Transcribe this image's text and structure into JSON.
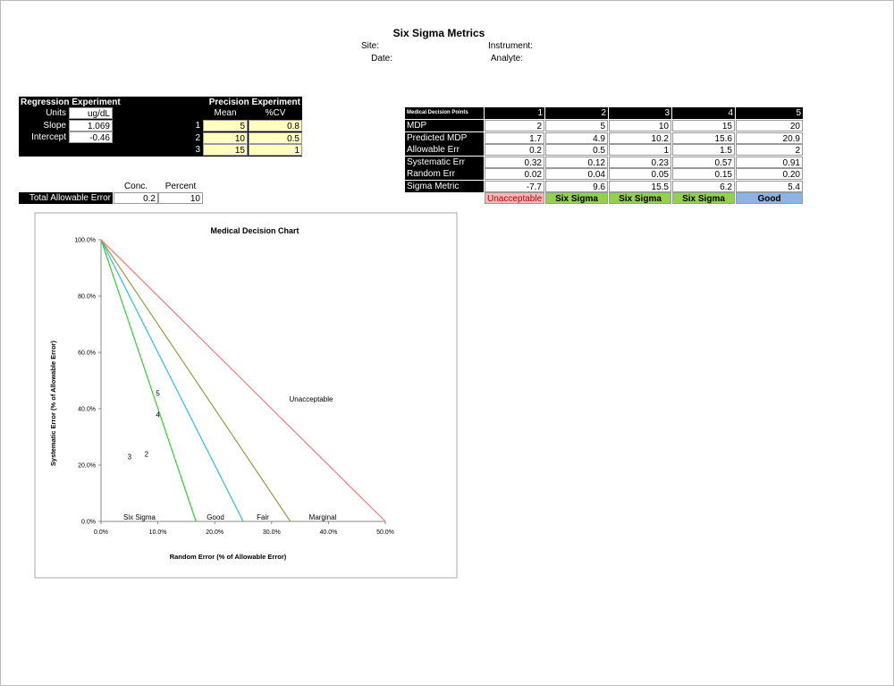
{
  "header": {
    "title": "Six Sigma Metrics",
    "site": "Site:",
    "instrument": "Instrument:",
    "date": "Date:",
    "analyte": "Analyte:"
  },
  "regression": {
    "title": "Regression Experiment",
    "rows": [
      [
        "Units",
        "ug/dL"
      ],
      [
        "Slope",
        1.069
      ],
      [
        "Intercept",
        -0.46
      ]
    ]
  },
  "precision": {
    "title": "Precision Experiment",
    "columns": [
      "Mean",
      "%CV"
    ],
    "rows": [
      [
        1,
        5,
        0.8
      ],
      [
        2,
        10,
        0.5
      ],
      [
        3,
        15,
        1
      ]
    ]
  },
  "allowable_error": {
    "label": "Total Allowable Error",
    "columns": [
      "Conc.",
      "Percent"
    ],
    "values": [
      0.2,
      10
    ]
  },
  "decision_points": {
    "title": "Medical Decision Points",
    "columns": [
      1,
      2,
      3,
      4,
      5
    ],
    "rows": [
      {
        "label": "MDP",
        "values": [
          2,
          5,
          10,
          15,
          20
        ]
      },
      {
        "label": "Predicted MDP",
        "values": [
          1.7,
          4.9,
          10.2,
          15.6,
          20.9
        ]
      },
      {
        "label": "Allowable Err",
        "values": [
          0.2,
          0.5,
          1,
          1.5,
          2
        ]
      },
      {
        "label": "Systematic Err",
        "values": [
          0.32,
          0.12,
          0.23,
          0.57,
          0.91
        ]
      },
      {
        "label": "Random Err",
        "values": [
          0.02,
          0.04,
          0.05,
          0.15,
          "0.20"
        ]
      },
      {
        "label": "Sigma Metric",
        "values": [
          -7.7,
          9.6,
          15.5,
          6.2,
          5.4
        ]
      }
    ],
    "ratings": [
      {
        "text": "Unacceptable",
        "fill": "#f4b8b8",
        "color": "#c00000"
      },
      {
        "text": "Six Sigma",
        "fill": "#92d050",
        "color": "#000000"
      },
      {
        "text": "Six Sigma",
        "fill": "#92d050",
        "color": "#000000"
      },
      {
        "text": "Six Sigma",
        "fill": "#92d050",
        "color": "#000000"
      },
      {
        "text": "Good",
        "fill": "#8db3e2",
        "color": "#000000"
      }
    ]
  },
  "chart_data": {
    "type": "line",
    "title": "Medical Decision Chart",
    "x_label": "Random Error (% of Allowable Error)",
    "y_label": "Systematic Error (% of Allowable Error)",
    "xlim": [
      0,
      50
    ],
    "xticks": [
      {
        "value": 0,
        "label": "0.0%"
      },
      {
        "value": 10,
        "label": "10.0%"
      },
      {
        "value": 20,
        "label": "20.0%"
      },
      {
        "value": 30,
        "label": "30.0%"
      },
      {
        "value": 40,
        "label": "40.0%"
      },
      {
        "value": 50,
        "label": "50.0%"
      }
    ],
    "ylim": [
      0,
      100
    ],
    "yticks": [
      {
        "value": 0,
        "label": "0.0%"
      },
      {
        "value": 20,
        "label": "20.0%"
      },
      {
        "value": 40,
        "label": "40.0%"
      },
      {
        "value": 60,
        "label": "60.0%"
      },
      {
        "value": 80,
        "label": "80.0%"
      },
      {
        "value": 100,
        "label": "100.0%"
      }
    ],
    "lines": [
      {
        "color": "#33cc33",
        "x": [
          0,
          16.7
        ],
        "y": [
          100,
          0
        ]
      },
      {
        "color": "#33bbdd",
        "x": [
          0,
          25
        ],
        "y": [
          100,
          0
        ]
      },
      {
        "color": "#999944",
        "x": [
          0,
          33.3
        ],
        "y": [
          100,
          0
        ]
      },
      {
        "color": "#ff7777",
        "x": [
          0,
          50
        ],
        "y": [
          100,
          0
        ]
      }
    ],
    "zones": [
      "Six Sigma",
      "Good",
      "Fair",
      "Marginal",
      "Unacceptable"
    ],
    "points": {
      "labels": [
        "2",
        "3",
        "4",
        "5"
      ],
      "x": [
        8,
        5,
        10,
        10
      ],
      "y": [
        24,
        23,
        38,
        45.5
      ]
    }
  }
}
